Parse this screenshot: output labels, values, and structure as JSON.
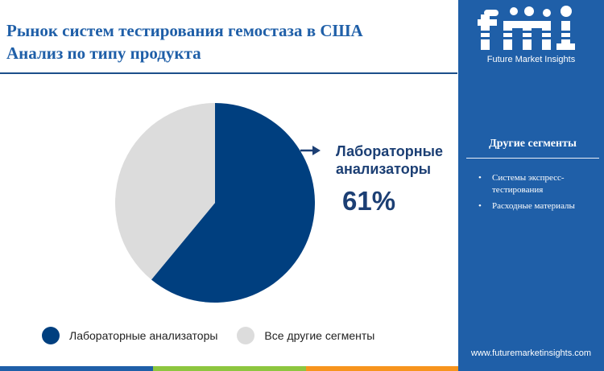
{
  "title": {
    "line1": "Рынок систем тестирования гемостаза в США",
    "line2": "Анализ по типу продукта"
  },
  "colors": {
    "primary": "#1f5fa8",
    "navy": "#003f7f",
    "grey": "#dcdcdc",
    "text_dark": "#1c3f74",
    "footer": [
      "#1f5fa8",
      "#8dc63f",
      "#f7941d",
      "#1f5fa8"
    ]
  },
  "chart_data": {
    "type": "pie",
    "slices": [
      {
        "label": "Лабораторные анализаторы",
        "value": 61,
        "color": "#003f7f"
      },
      {
        "label": "Все другие сегменты",
        "value": 39,
        "color": "#dcdcdc"
      }
    ],
    "callout": {
      "label": "Лабораторные анализаторы",
      "value": "61%"
    },
    "legend_position": "bottom-left"
  },
  "legend": [
    {
      "label": "Лабораторные анализаторы",
      "color": "#003f7f"
    },
    {
      "label": "Все другие сегменты",
      "color": "#dcdcdc"
    }
  ],
  "sidebar": {
    "brand": "Future Market Insights",
    "heading": "Другие сегменты",
    "items": [
      "Системы экспресс-тестирования",
      "Расходные материалы"
    ],
    "url": "www.futuremarketinsights.com"
  }
}
